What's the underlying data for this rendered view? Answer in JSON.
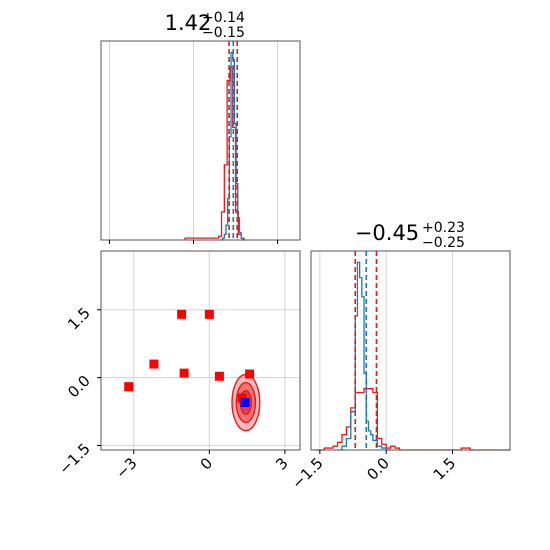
{
  "chart_data": [
    {
      "type": "histogram",
      "panel": "top-left marginal",
      "title": {
        "value": "1.42",
        "upper": "+0.14",
        "lower": "−0.15"
      },
      "xlim": [
        -3.3,
        3.8
      ],
      "grid": true,
      "series": [
        {
          "color": "#1f77b4",
          "bin_edges": [
            0.98,
            1.04,
            1.1,
            1.16,
            1.22,
            1.28,
            1.34,
            1.4,
            1.46,
            1.52,
            1.58,
            1.64,
            1.7,
            1.76,
            1.82
          ],
          "counts": [
            0,
            1,
            3,
            8,
            22,
            55,
            100,
            96,
            62,
            30,
            12,
            4,
            1,
            0
          ]
        },
        {
          "color": "#e41a1c",
          "bin_edges": [
            -0.3,
            0.9,
            1.0,
            1.1,
            1.2,
            1.3,
            1.4,
            1.5,
            1.6,
            1.7,
            1.8
          ],
          "counts": [
            1,
            2,
            15,
            40,
            85,
            92,
            60,
            15,
            3,
            1
          ]
        }
      ],
      "quantile_lines": [
        {
          "color": "#e41a1c",
          "values": [
            1.27,
            1.56
          ]
        },
        {
          "color": "#1f77b4",
          "values": [
            1.42
          ]
        }
      ]
    },
    {
      "type": "histogram",
      "panel": "bottom-right marginal",
      "title": {
        "value": "−0.45",
        "upper": "+0.23",
        "lower": "−0.25"
      },
      "xlim": [
        -1.7,
        2.8
      ],
      "xticks": [
        "−1.5",
        "0.0",
        "1.5"
      ],
      "grid": true,
      "series": [
        {
          "color": "#1f77b4",
          "bin_edges": [
            -1.1,
            -1.0,
            -0.9,
            -0.8,
            -0.7,
            -0.65,
            -0.6,
            -0.55,
            -0.5,
            -0.45,
            -0.4,
            -0.35,
            -0.3,
            -0.2,
            -0.1,
            0.0,
            0.1
          ],
          "counts": [
            0,
            2,
            6,
            20,
            70,
            98,
            90,
            80,
            40,
            15,
            10,
            8,
            5,
            2,
            1,
            0
          ]
        },
        {
          "color": "#e41a1c",
          "bin_edges": [
            -1.6,
            -1.4,
            -1.2,
            -1.1,
            -1.0,
            -0.9,
            -0.8,
            -0.7,
            -0.6,
            -0.5,
            -0.4,
            -0.3,
            -0.2,
            -0.1,
            0.0,
            0.1,
            0.2,
            0.3,
            0.4,
            1.7,
            1.9,
            2.8
          ],
          "counts": [
            0,
            1,
            2,
            4,
            8,
            12,
            22,
            30,
            30,
            32,
            32,
            30,
            6,
            3,
            1,
            2,
            1,
            0,
            0,
            1,
            0
          ]
        }
      ],
      "quantile_lines": [
        {
          "color": "#e41a1c",
          "values": [
            -0.7,
            -0.22
          ]
        },
        {
          "color": "#1f77b4",
          "values": [
            -0.45
          ]
        }
      ]
    },
    {
      "type": "scatter",
      "panel": "bottom-left joint",
      "xlim": [
        -4.3,
        3.6
      ],
      "ylim": [
        -1.6,
        2.8
      ],
      "xticks": [
        "−3",
        "0",
        "3"
      ],
      "yticks": [
        "−1.5",
        "0.0",
        "1.5"
      ],
      "grid": true,
      "series": [
        {
          "color": "#ff0000",
          "marker": "square",
          "x": [
            -3.2,
            -2.2,
            -1.0,
            -1.1,
            0.0,
            0.4,
            1.6,
            1.3
          ],
          "y": [
            -0.2,
            0.3,
            0.1,
            1.4,
            1.4,
            0.03,
            0.08,
            -0.45
          ]
        },
        {
          "color": "#0000ff",
          "marker": "square",
          "x": [
            1.42
          ],
          "y": [
            -0.55
          ]
        }
      ],
      "contours": {
        "color": "#e41a1c",
        "center": [
          1.45,
          -0.55
        ],
        "levels_sigma": [
          {
            "sx": 0.55,
            "sy": 0.62
          },
          {
            "sx": 0.38,
            "sy": 0.44
          },
          {
            "sx": 0.22,
            "sy": 0.26
          }
        ]
      }
    }
  ]
}
